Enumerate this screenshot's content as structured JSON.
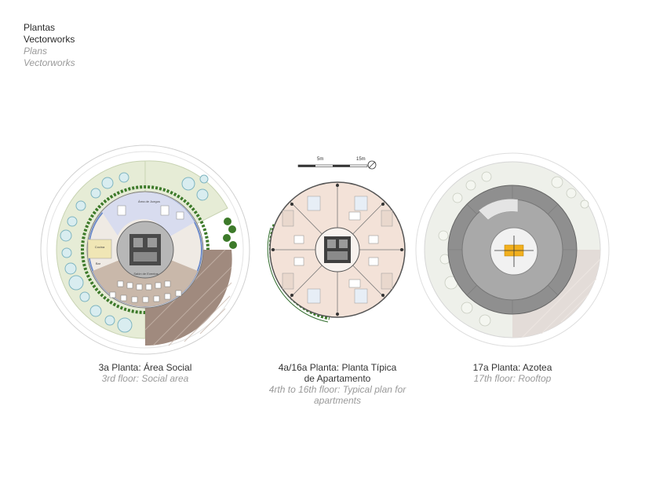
{
  "header": {
    "title_es": "Plantas",
    "software_es": "Vectorworks",
    "title_en": "Plans",
    "software_en": "Vectorworks"
  },
  "scale_bar": {
    "label_mid": "5m",
    "label_end": "15m"
  },
  "plans": [
    {
      "caption_es": "3a Planta: Área Social",
      "caption_en": "3rd floor: Social area",
      "room_labels": [
        "Área de Juegos",
        "Salón de Eventos",
        "Cocina",
        "Bar"
      ]
    },
    {
      "caption_es_line1": "4a/16a Planta: Planta Típica",
      "caption_es_line2": "de Apartamento",
      "caption_en_line1": "4rth to 16th floor: Typical plan for",
      "caption_en_line2": "apartments"
    },
    {
      "caption_es": "17a Planta: Azotea",
      "caption_en": "17th floor: Rooftop"
    }
  ],
  "colors": {
    "lawn": "#e6ecd6",
    "deck": "#a08a7e",
    "core": "#4a4a4a",
    "social_floor": "#c9b8aa",
    "play_area": "#d8dcef",
    "apartment_floor": "#f3e2d8",
    "roof_ring": "#8f8f8f",
    "helipad": "#f2b01e"
  }
}
